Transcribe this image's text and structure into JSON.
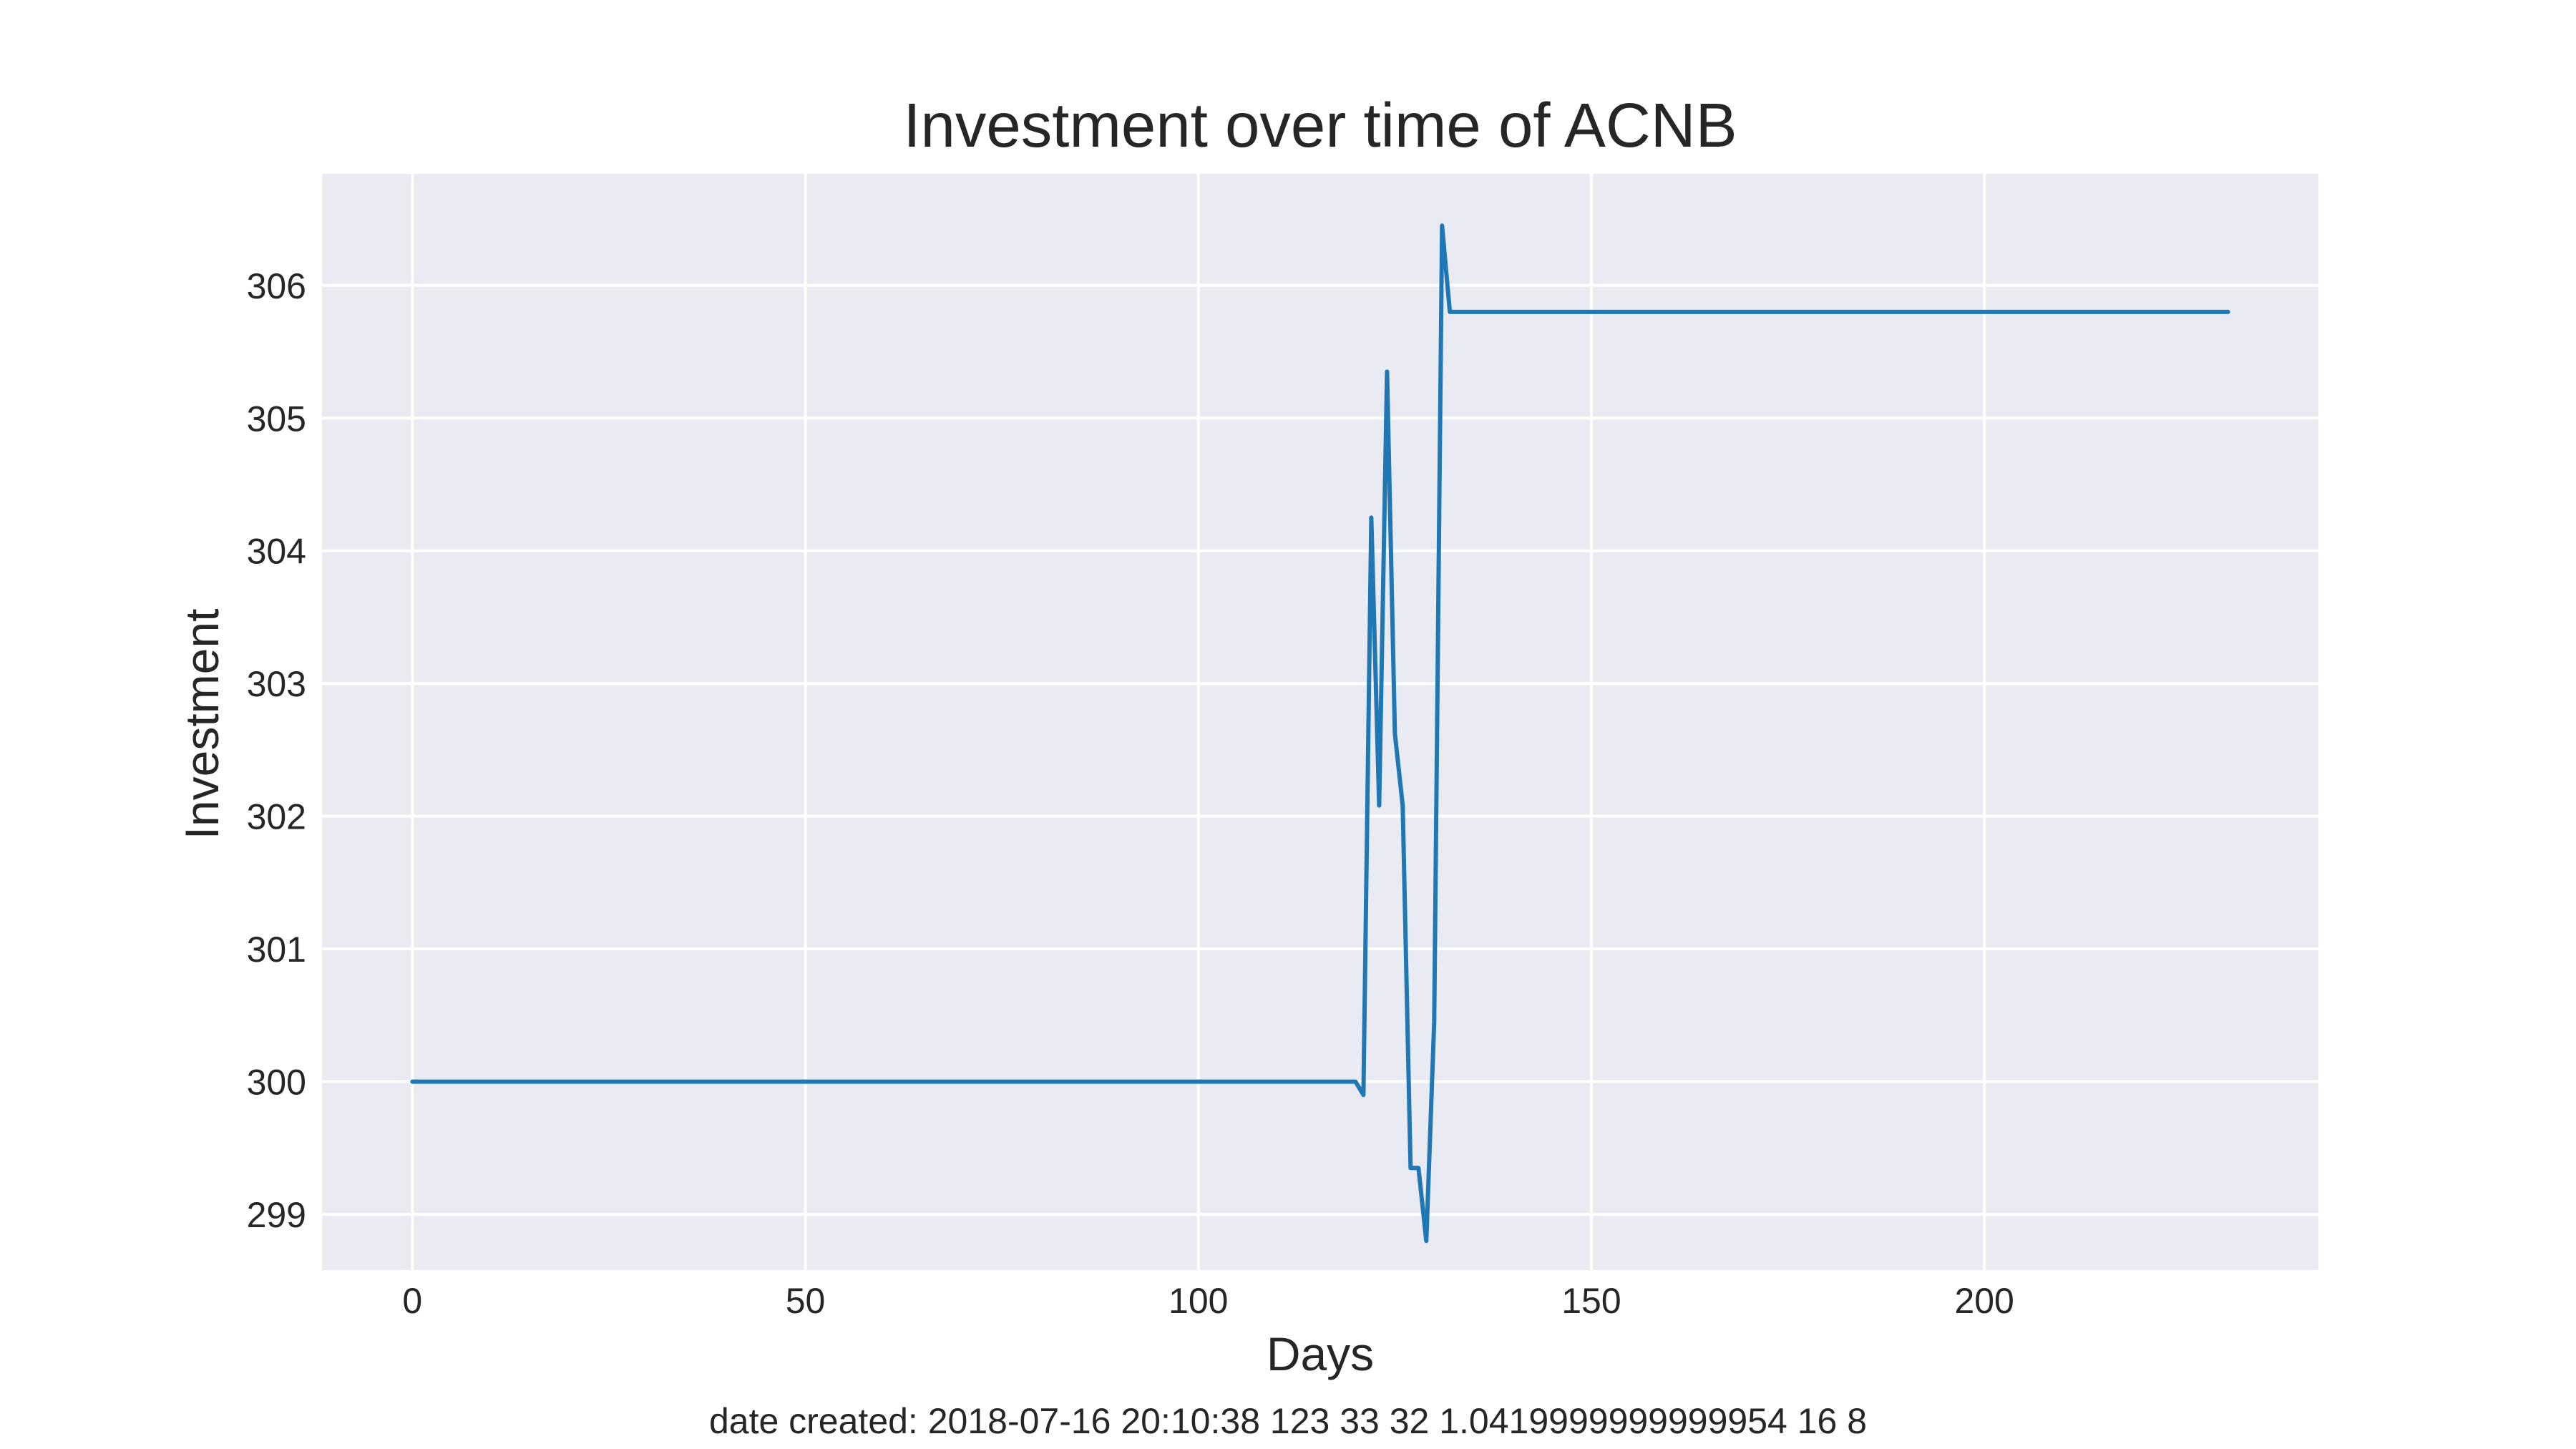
{
  "chart_data": {
    "type": "line",
    "title": "Investment over time of ACNB",
    "xlabel": "Days",
    "ylabel": "Investment",
    "footer": "date created: 2018-07-16 20:10:38 123 33 32 1.0419999999999954 16 8",
    "xlim": [
      -11.5,
      242.5
    ],
    "ylim": [
      298.58,
      306.84
    ],
    "xticks": [
      0,
      50,
      100,
      150,
      200
    ],
    "yticks": [
      299,
      300,
      301,
      302,
      303,
      304,
      305,
      306
    ],
    "grid": true,
    "colors": {
      "background": "#eaeaf2",
      "grid": "#ffffff",
      "line": "#1f77b4",
      "text": "#262626"
    },
    "series": [
      {
        "x": [
          0,
          120,
          121,
          122,
          123,
          124,
          125,
          126,
          127,
          128,
          129,
          130,
          131,
          132,
          231
        ],
        "values": [
          300.0,
          300.0,
          299.9,
          304.25,
          302.08,
          305.35,
          302.62,
          302.08,
          299.35,
          299.35,
          298.8,
          300.45,
          306.45,
          305.8,
          305.8
        ]
      }
    ]
  }
}
